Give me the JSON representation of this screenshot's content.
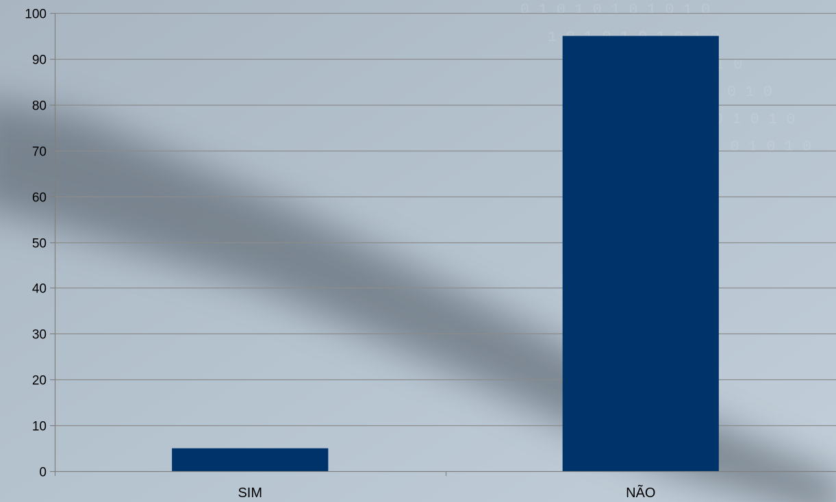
{
  "chart_data": {
    "type": "bar",
    "categories": [
      "SIM",
      "NÃO"
    ],
    "values": [
      5,
      95
    ],
    "title": "",
    "xlabel": "",
    "ylabel": "",
    "ylim": [
      0,
      100
    ],
    "yticks": [
      0,
      10,
      20,
      30,
      40,
      50,
      60,
      70,
      80,
      90,
      100
    ],
    "grid": true,
    "legend": "none",
    "colors": {
      "bar": "#00336a",
      "gridline": "#8c8c8c",
      "axis": "#808080",
      "text": "#000000"
    }
  }
}
